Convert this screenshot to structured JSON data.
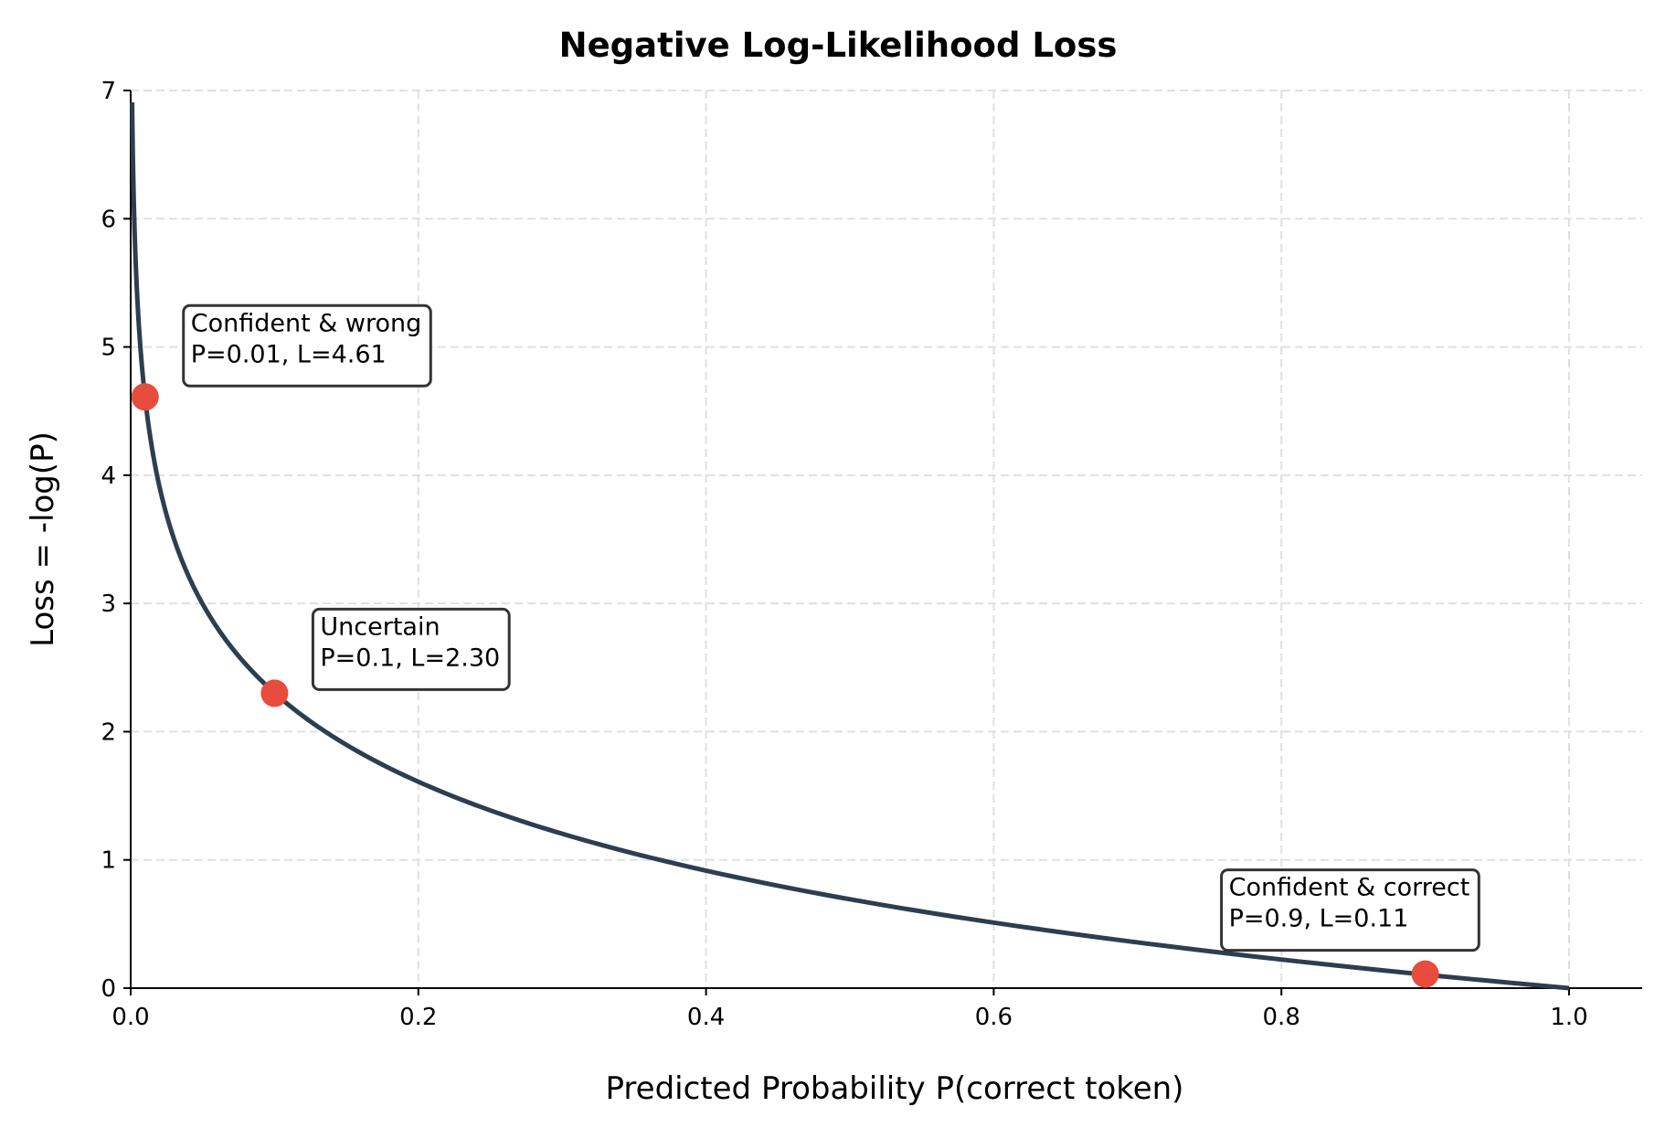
{
  "chart_data": {
    "type": "line",
    "title": "Negative Log-Likelihood Loss",
    "xlabel": "Predicted Probability P(correct token)",
    "ylabel": "Loss = -log(P)",
    "xlim": [
      0.0,
      1.05
    ],
    "ylim": [
      0,
      7
    ],
    "grid": true,
    "xticks": [
      "0.0",
      "0.2",
      "0.4",
      "0.6",
      "0.8",
      "1.0"
    ],
    "yticks": [
      "0",
      "1",
      "2",
      "3",
      "4",
      "5",
      "6",
      "7"
    ],
    "curve": {
      "function": "-ln(P)",
      "x_range": [
        0.001,
        1.0
      ],
      "color": "#2c3e50"
    },
    "points": [
      {
        "x": 0.01,
        "y": 4.61,
        "label": "Confident & wrong",
        "detail": "P=0.01, L=4.61"
      },
      {
        "x": 0.1,
        "y": 2.3,
        "label": "Uncertain",
        "detail": "P=0.1, L=2.30"
      },
      {
        "x": 0.9,
        "y": 0.11,
        "label": "Confident & correct",
        "detail": "P=0.9, L=0.11"
      }
    ],
    "point_color": "#e74c3c"
  }
}
